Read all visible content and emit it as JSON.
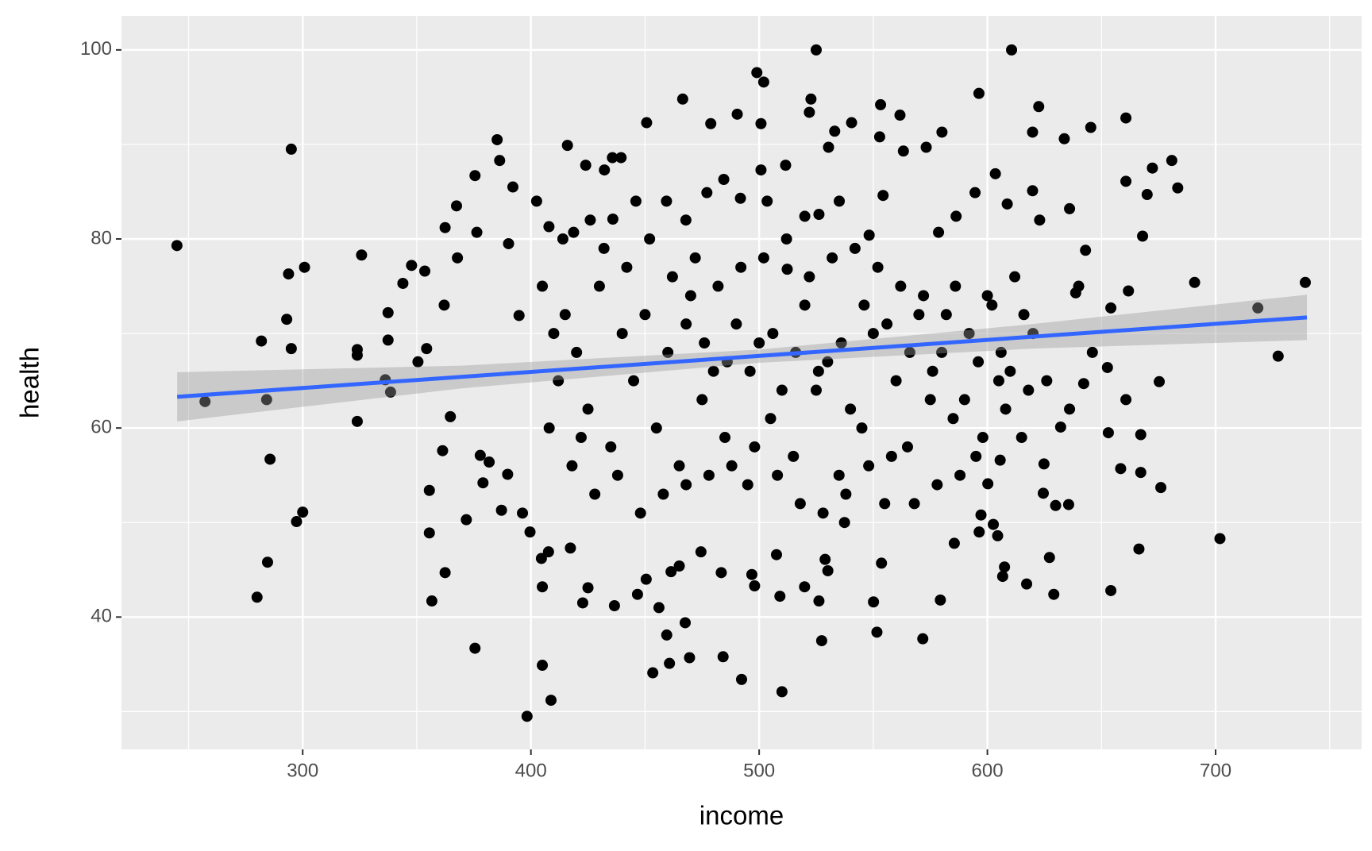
{
  "chart_data": {
    "type": "scatter",
    "x_label": "income",
    "y_label": "health",
    "xlim": [
      220.6,
      764
    ],
    "ylim": [
      26.0,
      103.6
    ],
    "xticks": [
      300,
      400,
      500,
      600,
      700
    ],
    "yticks": [
      40,
      60,
      80,
      100
    ],
    "x_minor_breaks": [
      250,
      350,
      450,
      550,
      650,
      750
    ],
    "y_minor_breaks": [
      30,
      50,
      70,
      90
    ],
    "grid": true,
    "panel_color": "#ebebeb",
    "points": {
      "color": "#000000",
      "x": [
        244.9,
        257.2,
        295,
        281.9,
        284.2,
        285.7,
        284.6,
        280,
        293.8,
        293,
        295,
        300.8,
        300,
        297.3,
        323.9,
        323.9,
        323.9,
        325.8,
        337.4,
        337.4,
        336.2,
        338.5,
        343.9,
        347.7,
        350.5,
        354.3,
        353.5,
        355.5,
        355.5,
        356.6,
        362.4,
        362,
        361.3,
        362.4,
        364.7,
        367.4,
        367.8,
        371.7,
        375.5,
        375.5,
        376.3,
        377.8,
        379,
        381.7,
        385.2,
        386.3,
        387.1,
        390.2,
        389.8,
        392.1,
        394.8,
        396.3,
        398.3,
        399.6,
        405,
        408.8,
        404.6,
        405,
        610.6,
        525,
        499,
        502,
        596.3,
        660.7,
        645.3,
        633.7,
        622.5,
        619.8,
        660.7,
        672.3,
        670,
        680.8,
        683.4,
        668,
        690.8,
        739.3,
        718.5,
        727.4,
        701.9,
        676,
        675.3,
        667.2,
        667.2,
        666.4,
        661.8,
        660.7,
        658.4,
        654.1,
        653,
        654.1,
        652.6,
        642.2,
        643,
        638.7,
        636,
        629.1,
        627.2,
        629.9,
        635.6,
        632.1,
        624.8,
        624.5,
        617.2,
        607.5,
        606.7,
        605.6,
        602.6,
        604.5,
        597.2,
        596.4,
        600.2,
        585.5,
        579.4,
        571.7,
        551.6,
        550.1,
        553.6,
        537.4,
        527.4,
        526.2,
        530.1,
        528.9,
        510,
        492.3,
        484.2,
        469.5,
        460.7,
        453.4,
        459.5,
        467.6,
        461.4,
        509.1,
        519.9,
        507.6,
        498,
        496.8,
        483.4,
        474.5,
        450.5,
        446.7,
        436.6,
        422.7,
        417.3,
        407.7,
        425,
        456.1,
        465,
        450.7,
        466.5,
        478.8,
        490.4,
        500.8,
        522.7,
        522,
        533.1,
        553.2,
        561.7,
        563.2,
        540.5,
        573.2,
        580.1,
        552.8,
        530.4,
        594.6,
        603.5,
        619.8,
        622.9,
        608.7,
        586.3,
        554.3,
        578.6,
        548.2,
        416,
        424,
        435.7,
        439.5,
        432.2,
        402.5,
        407.9,
        418.7,
        435.9,
        459.4,
        467.9,
        477.1,
        484.5,
        491.8,
        503.5,
        500.8,
        511.6,
        520,
        526.2,
        535.1,
        512.3,
        430,
        440,
        450,
        460,
        470,
        480,
        490,
        500,
        510,
        520,
        530,
        540,
        550,
        560,
        570,
        580,
        590,
        600,
        610,
        620,
        425,
        435,
        445,
        455,
        465,
        475,
        485,
        495,
        505,
        515,
        525,
        535,
        545,
        555,
        565,
        575,
        585,
        595,
        605,
        615,
        420,
        432,
        442,
        452,
        462,
        472,
        482,
        492,
        502,
        512,
        522,
        532,
        542,
        552,
        562,
        572,
        582,
        592,
        602,
        612,
        428,
        438,
        448,
        458,
        468,
        478,
        488,
        498,
        508,
        518,
        528,
        538,
        548,
        558,
        568,
        578,
        588,
        598,
        608,
        618,
        415,
        412,
        418,
        422,
        408,
        410,
        405,
        414,
        426,
        446,
        468,
        476,
        486,
        496,
        506,
        516,
        526,
        536,
        546,
        556,
        566,
        576,
        586,
        596,
        606,
        616,
        626,
        636,
        646,
        640
      ],
      "y": [
        79.3,
        62.8,
        89.5,
        69.2,
        63.0,
        56.7,
        45.8,
        42.1,
        76.3,
        71.5,
        68.4,
        77.0,
        51.1,
        50.1,
        68.3,
        67.7,
        60.7,
        78.3,
        72.2,
        69.3,
        65.1,
        63.8,
        75.3,
        77.2,
        67.0,
        68.4,
        76.6,
        53.4,
        48.9,
        41.7,
        81.2,
        73.0,
        57.6,
        44.7,
        61.2,
        83.5,
        78.0,
        50.3,
        36.7,
        86.7,
        80.7,
        57.1,
        54.2,
        56.4,
        90.5,
        88.3,
        51.3,
        79.5,
        55.1,
        85.5,
        71.9,
        51.0,
        29.5,
        49.0,
        34.9,
        31.2,
        46.2,
        43.2,
        100,
        100,
        97.6,
        96.6,
        95.4,
        92.8,
        91.8,
        90.6,
        94.0,
        91.3,
        86.1,
        87.5,
        84.7,
        88.3,
        85.4,
        80.3,
        75.4,
        75.4,
        72.7,
        67.6,
        48.3,
        53.7,
        64.9,
        59.3,
        55.3,
        47.2,
        74.5,
        63.0,
        55.7,
        42.8,
        59.5,
        72.7,
        66.4,
        64.7,
        78.8,
        74.3,
        83.2,
        42.4,
        46.3,
        51.8,
        51.9,
        60.1,
        56.2,
        53.1,
        43.5,
        45.3,
        44.3,
        56.6,
        49.8,
        48.6,
        50.8,
        49.0,
        54.1,
        47.8,
        41.8,
        37.7,
        38.4,
        41.6,
        45.7,
        50.0,
        37.5,
        41.7,
        44.9,
        46.1,
        32.1,
        33.4,
        35.8,
        35.7,
        35.1,
        34.1,
        38.1,
        39.4,
        44.8,
        42.2,
        43.2,
        46.6,
        43.3,
        44.5,
        44.7,
        46.9,
        44.0,
        42.4,
        41.2,
        41.5,
        47.3,
        46.9,
        43.1,
        41.0,
        45.4,
        92.3,
        94.8,
        92.2,
        93.2,
        92.2,
        94.8,
        93.4,
        91.4,
        94.2,
        93.1,
        89.3,
        92.3,
        89.7,
        91.3,
        90.8,
        89.7,
        84.9,
        86.9,
        85.1,
        82.0,
        83.7,
        82.4,
        84.6,
        80.7,
        80.4,
        89.9,
        87.8,
        88.6,
        88.6,
        87.3,
        84.0,
        81.3,
        80.7,
        82.1,
        84.0,
        82.0,
        84.9,
        86.3,
        84.3,
        84.0,
        87.3,
        87.8,
        82.4,
        82.6,
        84.0,
        76.8,
        75,
        70,
        72,
        68,
        74,
        66,
        71,
        69,
        64,
        73,
        67,
        62,
        70,
        65,
        72,
        68,
        63,
        74,
        66,
        70,
        62,
        58,
        65,
        60,
        56,
        63,
        59,
        54,
        61,
        57,
        64,
        55,
        60,
        52,
        58,
        63,
        61,
        57,
        65,
        59,
        68,
        79,
        77,
        80,
        76,
        78,
        75,
        77,
        78,
        80,
        76,
        78,
        79,
        77,
        75,
        74,
        72,
        70,
        73,
        76,
        53,
        55,
        51,
        53,
        54,
        55,
        56,
        58,
        55,
        52,
        51,
        53,
        56,
        57,
        52,
        54,
        55,
        59,
        62,
        64,
        72,
        65,
        56,
        59,
        60,
        70,
        75,
        80,
        82,
        84,
        71,
        69,
        67,
        66,
        70,
        68,
        66,
        69,
        73,
        71,
        68,
        66,
        75,
        67,
        68,
        72,
        65,
        62,
        68,
        75
      ]
    },
    "fit": {
      "color": "#3366ff",
      "x": [
        245,
        740
      ],
      "y": [
        63.3,
        71.7
      ]
    },
    "band": {
      "color": "#999999",
      "x": [
        245,
        370,
        500,
        620,
        740
      ],
      "lower": [
        60.7,
        64.2,
        66.9,
        68.4,
        69.3
      ],
      "upper": [
        65.9,
        66.6,
        68.3,
        71.0,
        74.1
      ]
    }
  }
}
